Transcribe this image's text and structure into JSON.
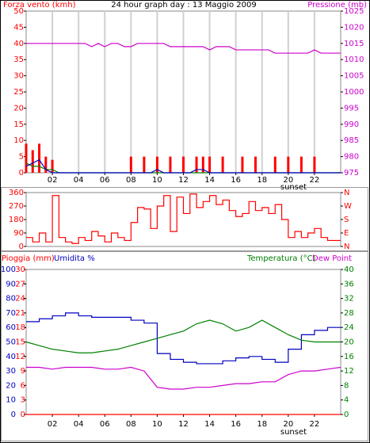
{
  "chart_data": [
    {
      "type": "combo",
      "title": "24 hour graph day : 13 Maggio 2009",
      "ylabel": "Forza vento (kmh)",
      "y2label": "Pressione (mb)",
      "ycolor": "#ff0000",
      "y2color": "#cc00cc",
      "xgrid": true,
      "xlim": [
        0,
        24
      ],
      "xticks": [
        {
          "value": 2,
          "label": "02"
        },
        {
          "value": 4,
          "label": "04"
        },
        {
          "value": 6,
          "label": "06"
        },
        {
          "value": 8,
          "label": "08"
        },
        {
          "value": 10,
          "label": "10"
        },
        {
          "value": 12,
          "label": "12"
        },
        {
          "value": 14,
          "label": "14"
        },
        {
          "value": 16,
          "label": "16"
        },
        {
          "value": 18,
          "label": "18"
        },
        {
          "value": 20,
          "label": "20"
        },
        {
          "value": 22,
          "label": "22"
        }
      ],
      "ylim": [
        0,
        50
      ],
      "yticks": [
        0,
        5,
        10,
        15,
        20,
        25,
        30,
        35,
        40,
        45,
        50
      ],
      "y2lim": [
        975,
        1025
      ],
      "y2ticks": [
        975,
        980,
        985,
        990,
        995,
        1000,
        1005,
        1010,
        1015,
        1020,
        1025
      ],
      "annotation": {
        "label": "sunset",
        "x": 20.4
      },
      "x": [
        0,
        0.5,
        1,
        1.5,
        2,
        2.5,
        3,
        3.5,
        4,
        4.5,
        5,
        5.5,
        6,
        6.5,
        7,
        7.5,
        8,
        8.5,
        9,
        9.5,
        10,
        10.5,
        11,
        11.5,
        12,
        12.5,
        13,
        13.5,
        14,
        14.5,
        15,
        15.5,
        16,
        16.5,
        17,
        17.5,
        18,
        18.5,
        19,
        19.5,
        20,
        20.5,
        21,
        21.5,
        22,
        22.5,
        23,
        23.5,
        24
      ],
      "series": [
        {
          "type": "bar",
          "color": "#ff0000",
          "values": [
            9,
            7,
            9,
            5,
            4,
            0,
            0,
            0,
            0,
            0,
            0,
            0,
            0,
            0,
            0,
            0,
            5,
            0,
            5,
            0,
            5,
            0,
            5,
            0,
            5,
            0,
            5,
            5,
            5,
            0,
            5,
            0,
            0,
            5,
            0,
            5,
            0,
            0,
            5,
            0,
            5,
            0,
            5,
            0,
            5,
            0,
            0,
            0,
            0
          ]
        },
        {
          "type": "line",
          "color": "#008000",
          "values": [
            3,
            2,
            2,
            1,
            1,
            0,
            0,
            0,
            0,
            0,
            0,
            0,
            0,
            0,
            0,
            0,
            0,
            0,
            0,
            0,
            0,
            0,
            0,
            0,
            0,
            0,
            0,
            0,
            0,
            0,
            0,
            0,
            0,
            0,
            0,
            0,
            0,
            0,
            0,
            0,
            0,
            0,
            0,
            0,
            0,
            0,
            0,
            0,
            0
          ]
        },
        {
          "type": "line",
          "color": "#0000c0",
          "values": [
            2,
            3,
            4,
            1,
            0,
            0,
            0,
            0,
            0,
            0,
            0,
            0,
            0,
            0,
            0,
            0,
            0,
            0,
            0,
            0,
            1,
            0,
            0,
            0,
            0,
            0,
            1,
            1,
            0,
            0,
            0,
            0,
            0,
            0,
            0,
            0,
            0,
            0,
            0,
            0,
            0,
            0,
            0,
            0,
            0,
            0,
            0,
            0,
            0
          ]
        },
        {
          "type": "line",
          "color": "#cc00cc",
          "axis": "y2",
          "values": [
            1015,
            1015,
            1015,
            1015,
            1015,
            1015,
            1015,
            1015,
            1015,
            1015,
            1014,
            1015,
            1014,
            1015,
            1015,
            1014,
            1014,
            1015,
            1015,
            1015,
            1015,
            1015,
            1014,
            1014,
            1014,
            1014,
            1014,
            1014,
            1013,
            1014,
            1014,
            1014,
            1013,
            1013,
            1013,
            1013,
            1013,
            1013,
            1012,
            1012,
            1012,
            1012,
            1012,
            1012,
            1013,
            1012,
            1012,
            1012,
            1012
          ]
        }
      ]
    },
    {
      "type": "combo",
      "ycolor": "#ff0000",
      "y2color": "#ff0000",
      "xgrid": false,
      "xlim": [
        0,
        24
      ],
      "ylim": [
        0,
        360
      ],
      "yticks": [
        0,
        90,
        180,
        270,
        360
      ],
      "y2lim": [
        0,
        360
      ],
      "y2ticks": [
        {
          "value": 0,
          "label": "N"
        },
        {
          "value": 90,
          "label": "E"
        },
        {
          "value": 180,
          "label": "S"
        },
        {
          "value": 270,
          "label": "W"
        },
        {
          "value": 360,
          "label": "N"
        }
      ],
      "x": [
        0,
        0.5,
        1,
        1.5,
        2,
        2.5,
        3,
        3.5,
        4,
        4.5,
        5,
        5.5,
        6,
        6.5,
        7,
        7.5,
        8,
        8.5,
        9,
        9.5,
        10,
        10.5,
        11,
        11.5,
        12,
        12.5,
        13,
        13.5,
        14,
        14.5,
        15,
        15.5,
        16,
        16.5,
        17,
        17.5,
        18,
        18.5,
        19,
        19.5,
        20,
        20.5,
        21,
        21.5,
        22,
        22.5,
        23,
        23.5,
        24
      ],
      "series": [
        {
          "type": "step",
          "color": "#ff0000",
          "values": [
            60,
            30,
            90,
            30,
            340,
            60,
            30,
            20,
            60,
            40,
            100,
            70,
            30,
            90,
            60,
            40,
            160,
            260,
            250,
            120,
            270,
            340,
            100,
            330,
            220,
            350,
            260,
            300,
            340,
            280,
            310,
            240,
            200,
            220,
            300,
            240,
            260,
            220,
            280,
            180,
            60,
            100,
            60,
            90,
            120,
            60,
            40,
            40,
            40
          ]
        }
      ]
    },
    {
      "type": "combo",
      "ycolor": "#0000c0",
      "y2color": "#008000",
      "rain_color": "#ff0000",
      "xgrid": false,
      "xlim": [
        0,
        24
      ],
      "xticks": [
        {
          "value": 2,
          "label": "02"
        },
        {
          "value": 4,
          "label": "04"
        },
        {
          "value": 6,
          "label": "06"
        },
        {
          "value": 8,
          "label": "08"
        },
        {
          "value": 10,
          "label": "10"
        },
        {
          "value": 12,
          "label": "12"
        },
        {
          "value": 14,
          "label": "14"
        },
        {
          "value": 16,
          "label": "16"
        },
        {
          "value": 18,
          "label": "18"
        },
        {
          "value": 20,
          "label": "20"
        },
        {
          "value": 22,
          "label": "22"
        }
      ],
      "ylim": [
        0,
        100
      ],
      "yticks": [
        0,
        10,
        20,
        30,
        40,
        50,
        60,
        70,
        80,
        90,
        100
      ],
      "rain_ylim": [
        0,
        30
      ],
      "rain_yticks": [
        0,
        3,
        6,
        9,
        12,
        15,
        18,
        21,
        24,
        27,
        30
      ],
      "y2lim": [
        0,
        40
      ],
      "y2ticks": [
        0,
        4,
        8,
        12,
        16,
        20,
        24,
        28,
        32,
        36,
        40
      ],
      "annotation": {
        "label": "sunset",
        "x": 20.4
      },
      "x": [
        0,
        1,
        2,
        3,
        4,
        5,
        6,
        7,
        8,
        9,
        10,
        11,
        12,
        13,
        14,
        15,
        16,
        17,
        18,
        19,
        20,
        21,
        22,
        23,
        24
      ],
      "series": [
        {
          "name": "Pioggia (mm)",
          "type": "line",
          "color": "#ff0000",
          "axis": "rain",
          "values": [
            0,
            0,
            0,
            0,
            0,
            0,
            0,
            0,
            0,
            0,
            0,
            0,
            0,
            0,
            0,
            0,
            0,
            0,
            0,
            0,
            0,
            0,
            0,
            0,
            0
          ]
        },
        {
          "name": "Umidita %",
          "type": "step",
          "color": "#0000c0",
          "values": [
            64,
            66,
            68,
            70,
            68,
            67,
            67,
            67,
            65,
            63,
            42,
            38,
            36,
            35,
            35,
            37,
            39,
            40,
            38,
            36,
            45,
            55,
            58,
            60,
            60
          ]
        },
        {
          "name": "Temperatura (°C)",
          "type": "line",
          "color": "#008000",
          "axis": "y2",
          "values": [
            20,
            19,
            18,
            17.5,
            17,
            17,
            17.5,
            18,
            19,
            20,
            21,
            22,
            23,
            25,
            26,
            25,
            23,
            24,
            26,
            24,
            22,
            20.5,
            20,
            20,
            20
          ]
        },
        {
          "name": "Dew Point",
          "type": "line",
          "color": "#cc00cc",
          "axis": "y2",
          "values": [
            13,
            13,
            12.5,
            13,
            13,
            13,
            12.5,
            12.5,
            13,
            12,
            7.5,
            7,
            7,
            7.5,
            7.5,
            8,
            8.5,
            8.5,
            9,
            9,
            11,
            12,
            12,
            12.5,
            13
          ]
        }
      ]
    }
  ]
}
